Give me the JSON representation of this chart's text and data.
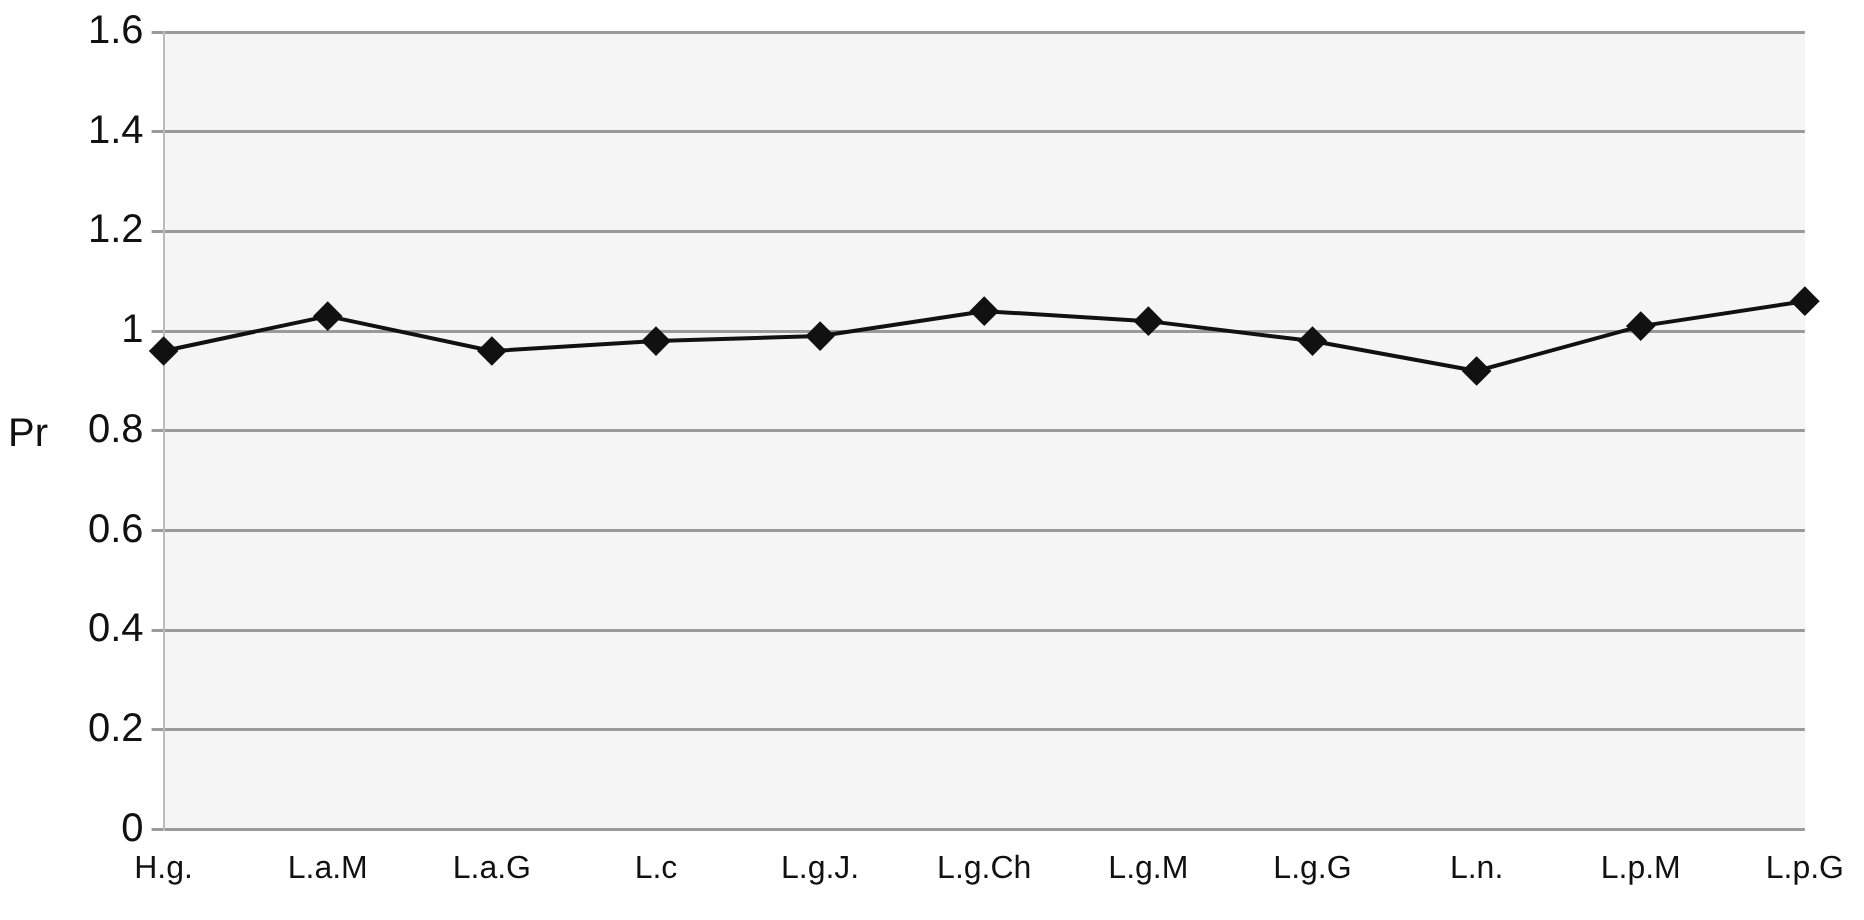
{
  "chart_data": {
    "type": "line",
    "ylabel": "Pr",
    "categories": [
      "H.g.",
      "L.a.M",
      "L.a.G",
      "L.c",
      "L.g.J.",
      "L.g.Ch",
      "L.g.M",
      "L.g.G",
      "L.n.",
      "L.p.M",
      "L.p.G"
    ],
    "series": [
      {
        "color": "#111111",
        "values": [
          0.96,
          1.03,
          0.96,
          0.98,
          0.99,
          1.04,
          1.02,
          0.98,
          0.92,
          1.01,
          1.06
        ]
      }
    ],
    "ylim": [
      0,
      1.6
    ],
    "yticks": [
      0,
      0.2,
      0.4,
      0.6,
      0.8,
      1,
      1.2,
      1.4,
      1.6
    ],
    "grid": "y",
    "legend": false,
    "marker": "diamond",
    "line_style": "solid"
  }
}
